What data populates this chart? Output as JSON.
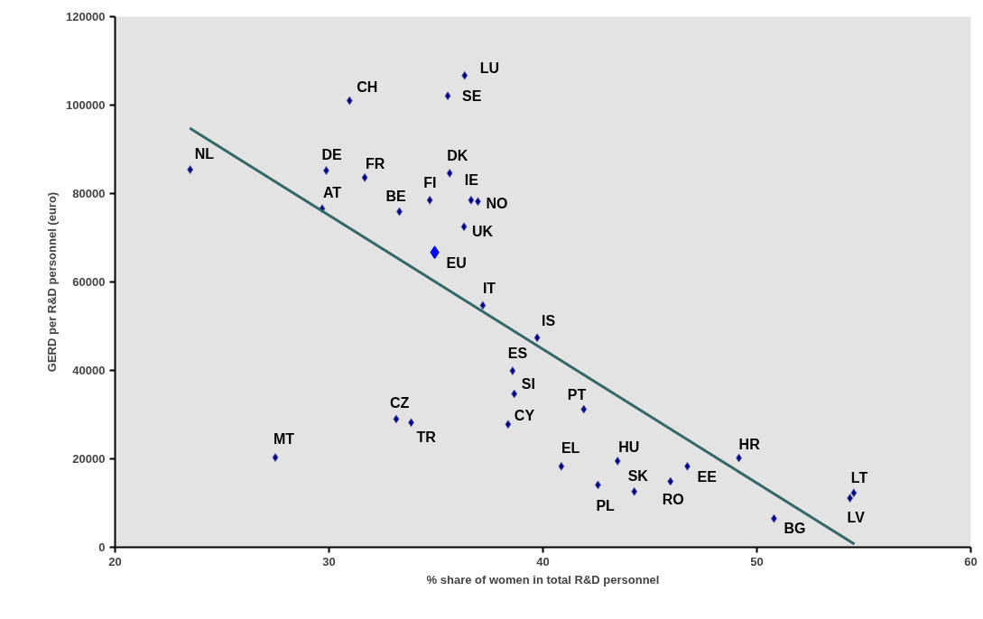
{
  "chart_data": {
    "type": "scatter",
    "xlabel": "% share of women in total R&D personnel",
    "ylabel": "GERD per R&D personnel (euro)",
    "xlim": [
      20,
      60
    ],
    "xticks": [
      20,
      30,
      40,
      50,
      60
    ],
    "ylim": [
      0,
      120000
    ],
    "yticks": [
      0,
      20000,
      40000,
      60000,
      80000,
      100000,
      120000
    ],
    "marker": "diamond",
    "series": [
      {
        "color": "#000080",
        "x": [
          23.51,
          30.96,
          36.34,
          35.55,
          29.87,
          31.67,
          35.64,
          34.71,
          36.64,
          36.96,
          29.68,
          33.29,
          36.31,
          37.19,
          39.73,
          38.58,
          38.66,
          38.37,
          41.91,
          33.14,
          33.84,
          27.49,
          40.86,
          43.49,
          42.57,
          44.27,
          45.96,
          46.75,
          49.16,
          50.8,
          54.53,
          54.35
        ],
        "values": [
          85400,
          101000,
          106700,
          102100,
          85200,
          83600,
          84600,
          78500,
          78500,
          78200,
          76600,
          75900,
          72500,
          54700,
          47400,
          39900,
          34700,
          27800,
          31200,
          29000,
          28200,
          20300,
          18300,
          19500,
          14100,
          12600,
          14900,
          18300,
          20200,
          6500,
          12300,
          11100
        ]
      },
      {
        "color": "#0000ff",
        "x": [
          34.94
        ],
        "values": [
          66700
        ]
      },
      {
        "type": "line",
        "marker": "none",
        "color": "#336666",
        "x": [
          23.49,
          54.56
        ],
        "values": [
          94800,
          700
        ]
      }
    ],
    "annotations": [
      {
        "text": "NL",
        "x": 23.51,
        "y": 85400
      },
      {
        "text": "CH",
        "x": 30.96,
        "y": 101000
      },
      {
        "text": "LU",
        "x": 36.34,
        "y": 106700
      },
      {
        "text": "SE",
        "x": 35.55,
        "y": 102100
      },
      {
        "text": "DE",
        "x": 29.87,
        "y": 85200
      },
      {
        "text": "FR",
        "x": 31.67,
        "y": 83600
      },
      {
        "text": "DK",
        "x": 35.64,
        "y": 84600
      },
      {
        "text": "FI",
        "x": 34.71,
        "y": 78500
      },
      {
        "text": "IE",
        "x": 36.64,
        "y": 78500
      },
      {
        "text": "NO",
        "x": 36.96,
        "y": 78200
      },
      {
        "text": "AT",
        "x": 29.68,
        "y": 76600
      },
      {
        "text": "BE",
        "x": 33.29,
        "y": 75900
      },
      {
        "text": "UK",
        "x": 36.31,
        "y": 72500
      },
      {
        "text": "IT",
        "x": 37.19,
        "y": 54700
      },
      {
        "text": "IS",
        "x": 39.73,
        "y": 47400
      },
      {
        "text": "ES",
        "x": 38.58,
        "y": 39900
      },
      {
        "text": "SI",
        "x": 38.66,
        "y": 34700
      },
      {
        "text": "CY",
        "x": 38.37,
        "y": 27800
      },
      {
        "text": "PT",
        "x": 41.91,
        "y": 31200
      },
      {
        "text": "CZ",
        "x": 33.14,
        "y": 29000
      },
      {
        "text": "TR",
        "x": 33.84,
        "y": 28200
      },
      {
        "text": "MT",
        "x": 27.49,
        "y": 20300
      },
      {
        "text": "EL",
        "x": 40.86,
        "y": 18300
      },
      {
        "text": "HU",
        "x": 43.49,
        "y": 19500
      },
      {
        "text": "PL",
        "x": 42.57,
        "y": 14100
      },
      {
        "text": "SK",
        "x": 44.27,
        "y": 12600
      },
      {
        "text": "RO",
        "x": 45.96,
        "y": 14900
      },
      {
        "text": "EE",
        "x": 46.75,
        "y": 18300
      },
      {
        "text": "HR",
        "x": 49.16,
        "y": 20200
      },
      {
        "text": "BG",
        "x": 50.8,
        "y": 6500
      },
      {
        "text": "LT",
        "x": 54.53,
        "y": 12300
      },
      {
        "text": "LV",
        "x": 54.35,
        "y": 11100
      },
      {
        "text": "EU",
        "x": 34.94,
        "y": 66700
      }
    ]
  }
}
